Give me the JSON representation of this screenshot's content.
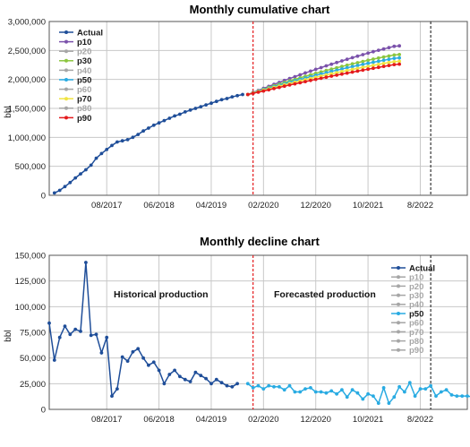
{
  "colors": {
    "actual": "#1f4e99",
    "p10": "#7b52ab",
    "p30": "#8cc63f",
    "p50": "#29abe2",
    "p70": "#f0e442",
    "p90": "#e41a1c",
    "greyed": "#a6a6a6",
    "divider_red": "#e41a1c",
    "divider_black": "#333333"
  },
  "chart_data": [
    {
      "type": "line",
      "title": "Monthly cumulative chart",
      "ylabel": "bbl",
      "xlabel": "",
      "ylim": [
        0,
        3000000
      ],
      "yticks": [
        0,
        500000,
        1000000,
        1500000,
        2000000,
        2500000,
        3000000
      ],
      "ytick_labels": [
        "0",
        "500,000",
        "1,000,000",
        "1,500,000",
        "2,000,000",
        "2,500,000",
        "3,000,000"
      ],
      "x_start": "2016-09",
      "x_end": "2023-05",
      "xticks": [
        "2017-08",
        "2018-06",
        "2019-04",
        "2020-02",
        "2020-12",
        "2021-10",
        "2022-08"
      ],
      "xtick_labels": [
        "08/2017",
        "06/2018",
        "04/2019",
        "02/2020",
        "12/2020",
        "10/2021",
        "8/2022"
      ],
      "grid": true,
      "legend_position": "top-left",
      "forecast_start": "2019-12",
      "vertical_marker": "2022-10",
      "legend": [
        {
          "label": "Actual",
          "color": "#1f4e99"
        },
        {
          "label": "p10",
          "color": "#7b52ab"
        },
        {
          "label": "p20",
          "color": "#a6a6a6"
        },
        {
          "label": "p30",
          "color": "#8cc63f"
        },
        {
          "label": "p40",
          "color": "#a6a6a6"
        },
        {
          "label": "p50",
          "color": "#29abe2"
        },
        {
          "label": "p60",
          "color": "#a6a6a6"
        },
        {
          "label": "p70",
          "color": "#f0e442"
        },
        {
          "label": "p80",
          "color": "#a6a6a6"
        },
        {
          "label": "p90",
          "color": "#e41a1c"
        }
      ],
      "series": [
        {
          "name": "Actual",
          "color": "#1f4e99",
          "x_start": "2016-10",
          "values": [
            40000,
            85000,
            150000,
            220000,
            300000,
            370000,
            440000,
            520000,
            640000,
            720000,
            790000,
            860000,
            920000,
            940000,
            960000,
            1000000,
            1050000,
            1110000,
            1160000,
            1210000,
            1250000,
            1290000,
            1330000,
            1370000,
            1400000,
            1440000,
            1470000,
            1500000,
            1530000,
            1560000,
            1590000,
            1620000,
            1650000,
            1670000,
            1700000,
            1720000,
            1740000
          ]
        },
        {
          "name": "p10",
          "color": "#7b52ab",
          "x_start": "2019-11",
          "values": [
            1740000,
            1775000,
            1810000,
            1845000,
            1880000,
            1914000,
            1948000,
            1982000,
            2015000,
            2048000,
            2080000,
            2112000,
            2143000,
            2174000,
            2204000,
            2234000,
            2263000,
            2292000,
            2320000,
            2348000,
            2375000,
            2402000,
            2428000,
            2454000,
            2479000,
            2503000,
            2526000,
            2549000,
            2571000,
            2580000
          ]
        },
        {
          "name": "p30",
          "color": "#8cc63f",
          "x_start": "2019-11",
          "values": [
            1740000,
            1770000,
            1800000,
            1830000,
            1860000,
            1889000,
            1918000,
            1946000,
            1974000,
            2001000,
            2028000,
            2054000,
            2080000,
            2105000,
            2130000,
            2154000,
            2178000,
            2201000,
            2224000,
            2246000,
            2268000,
            2289000,
            2310000,
            2330000,
            2350000,
            2369000,
            2387000,
            2405000,
            2422000,
            2430000
          ]
        },
        {
          "name": "p50",
          "color": "#29abe2",
          "x_start": "2019-11",
          "values": [
            1740000,
            1767000,
            1794000,
            1821000,
            1848000,
            1874000,
            1900000,
            1926000,
            1951000,
            1976000,
            2000000,
            2024000,
            2048000,
            2071000,
            2094000,
            2116000,
            2138000,
            2159000,
            2180000,
            2200000,
            2220000,
            2240000,
            2259000,
            2278000,
            2296000,
            2314000,
            2331000,
            2348000,
            2364000,
            2372000
          ]
        },
        {
          "name": "p70",
          "color": "#f0e442",
          "x_start": "2019-11",
          "values": [
            1740000,
            1764000,
            1788000,
            1812000,
            1836000,
            1860000,
            1883000,
            1906000,
            1929000,
            1951000,
            1973000,
            1995000,
            2016000,
            2037000,
            2057000,
            2077000,
            2097000,
            2116000,
            2135000,
            2154000,
            2172000,
            2190000,
            2208000,
            2225000,
            2242000,
            2259000,
            2275000,
            2291000,
            2306000,
            2314000
          ]
        },
        {
          "name": "p90",
          "color": "#e41a1c",
          "x_start": "2019-11",
          "values": [
            1740000,
            1760000,
            1780000,
            1800000,
            1820000,
            1841000,
            1862000,
            1883000,
            1903000,
            1923000,
            1943000,
            1963000,
            1982000,
            2001000,
            2020000,
            2038000,
            2056000,
            2074000,
            2092000,
            2109000,
            2126000,
            2143000,
            2160000,
            2177000,
            2193000,
            2209000,
            2225000,
            2241000,
            2256000,
            2264000
          ]
        }
      ]
    },
    {
      "type": "line",
      "title": "Monthly decline chart",
      "ylabel": "bbl",
      "xlabel": "",
      "ylim": [
        0,
        150000
      ],
      "yticks": [
        0,
        25000,
        50000,
        75000,
        100000,
        125000,
        150000
      ],
      "ytick_labels": [
        "0",
        "25,000",
        "50,000",
        "75,000",
        "100,000",
        "125,000",
        "150,000"
      ],
      "x_start": "2016-09",
      "x_end": "2023-05",
      "xticks": [
        "2017-08",
        "2018-06",
        "2019-04",
        "2020-02",
        "2020-12",
        "2021-10",
        "2022-08"
      ],
      "xtick_labels": [
        "08/2017",
        "06/2018",
        "04/2019",
        "02/2020",
        "12/2020",
        "10/2021",
        "8/2022"
      ],
      "grid": true,
      "legend_position": "top-right",
      "forecast_start": "2019-12",
      "vertical_marker": "2022-10",
      "annotations": [
        "Historical production",
        "Forecasted production"
      ],
      "legend": [
        {
          "label": "Actual",
          "color": "#1f4e99"
        },
        {
          "label": "p10",
          "color": "#a6a6a6"
        },
        {
          "label": "p20",
          "color": "#a6a6a6"
        },
        {
          "label": "p30",
          "color": "#a6a6a6"
        },
        {
          "label": "p40",
          "color": "#a6a6a6"
        },
        {
          "label": "p50",
          "color": "#29abe2"
        },
        {
          "label": "p60",
          "color": "#a6a6a6"
        },
        {
          "label": "p70",
          "color": "#a6a6a6"
        },
        {
          "label": "p80",
          "color": "#a6a6a6"
        },
        {
          "label": "p90",
          "color": "#a6a6a6"
        }
      ],
      "series": [
        {
          "name": "Actual",
          "color": "#1f4e99",
          "x_start": "2016-09",
          "values": [
            84000,
            48000,
            70000,
            81000,
            73000,
            78000,
            76000,
            143000,
            72000,
            73000,
            55000,
            70000,
            13000,
            20000,
            51000,
            47000,
            56000,
            59000,
            50000,
            43000,
            46000,
            38000,
            25000,
            34000,
            38000,
            32000,
            29000,
            27000,
            36000,
            33000,
            30000,
            25000,
            29000,
            26000,
            23000,
            22000,
            25000
          ]
        },
        {
          "name": "p50",
          "color": "#29abe2",
          "x_start": "2019-11",
          "values": [
            25000,
            21000,
            23000,
            20000,
            23000,
            22000,
            22000,
            19000,
            23000,
            17000,
            17000,
            20000,
            21000,
            17000,
            17000,
            16000,
            18000,
            15000,
            19000,
            12000,
            19000,
            16000,
            10000,
            15000,
            13000,
            6000,
            21000,
            6000,
            12000,
            22000,
            17000,
            26000,
            13000,
            20000,
            20000,
            23000,
            13000,
            17000,
            19000,
            14000,
            13000,
            13000,
            13000,
            12000
          ]
        }
      ]
    }
  ]
}
